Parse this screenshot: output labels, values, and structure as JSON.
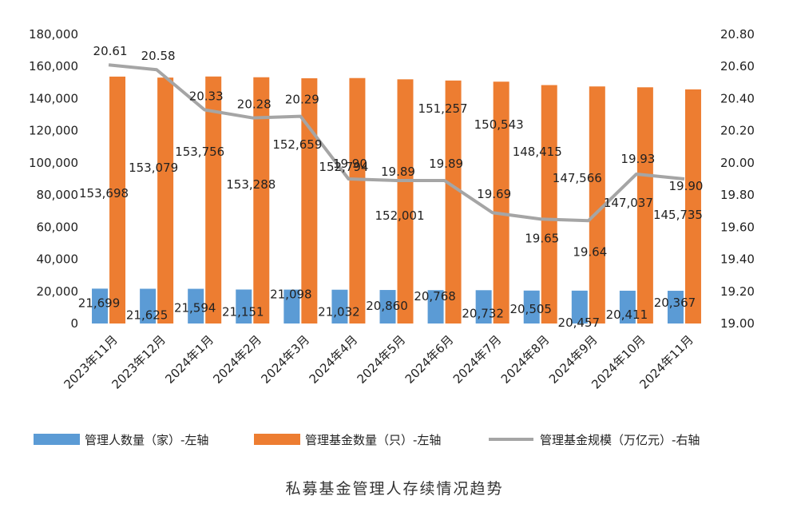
{
  "chart_data": {
    "type": "bar",
    "categories": [
      "2023年11月",
      "2023年12月",
      "2024年1月",
      "2024年2月",
      "2024年3月",
      "2024年4月",
      "2024年5月",
      "2024年6月",
      "2024年7月",
      "2024年8月",
      "2024年9月",
      "2024年10月",
      "2024年11月"
    ],
    "series": [
      {
        "name": "管理人数量（家）-左轴",
        "type": "bar",
        "axis": "left",
        "color": "#5B9BD5",
        "values": [
          21699,
          21625,
          21594,
          21151,
          21098,
          21032,
          20860,
          20768,
          20732,
          20505,
          20457,
          20411,
          20367
        ],
        "labels": [
          "21,699",
          "21,625",
          "21,594",
          "21,151",
          "21,098",
          "21,032",
          "20,860",
          "20,768",
          "20,732",
          "20,505",
          "20,457",
          "20,411",
          "20,367"
        ]
      },
      {
        "name": "管理基金数量（只）-左轴",
        "type": "bar",
        "axis": "left",
        "color": "#ED7D31",
        "values": [
          153698,
          153079,
          153756,
          153288,
          152659,
          152794,
          152001,
          151257,
          150543,
          148415,
          147566,
          147037,
          145735
        ],
        "labels": [
          "153,698",
          "153,079",
          "153,756",
          "153,288",
          "152,659",
          "152,794",
          "152,001",
          "151,257",
          "150,543",
          "148,415",
          "147,566",
          "147,037",
          "145,735"
        ]
      },
      {
        "name": "管理基金规模（万亿元）-右轴",
        "type": "line",
        "axis": "right",
        "color": "#A5A5A5",
        "values": [
          20.61,
          20.58,
          20.33,
          20.28,
          20.29,
          19.9,
          19.89,
          19.89,
          19.69,
          19.65,
          19.64,
          19.93,
          19.9
        ],
        "labels": [
          "20.61",
          "20.58",
          "20.33",
          "20.28",
          "20.29",
          "19.90",
          "19.89",
          "19.89",
          "19.69",
          "19.65",
          "19.64",
          "19.93",
          "19.90"
        ]
      }
    ],
    "left_axis": {
      "ylim": [
        0,
        180000
      ],
      "ticks": [
        "0",
        "20,000",
        "40,000",
        "60,000",
        "80,000",
        "100,000",
        "120,000",
        "140,000",
        "160,000",
        "180,000"
      ]
    },
    "right_axis": {
      "ylim": [
        19.0,
        20.8
      ],
      "ticks": [
        "19.00",
        "19.20",
        "19.40",
        "19.60",
        "19.80",
        "20.00",
        "20.20",
        "20.40",
        "20.60",
        "20.80"
      ]
    },
    "legend_position": "bottom",
    "grid": false
  },
  "caption": "私募基金管理人存续情况趋势"
}
